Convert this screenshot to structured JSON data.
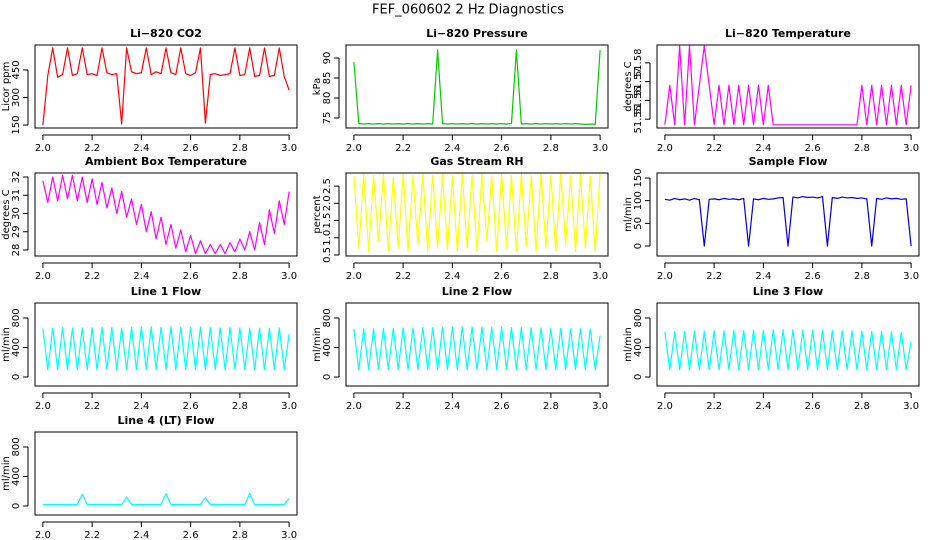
{
  "title": "FEF_060602  2 Hz Diagnostics",
  "chart_data": [
    {
      "type": "line",
      "title": "Li−820 CO2",
      "ylabel": "Licor ppm",
      "color": "#ff0000",
      "x": [
        2,
        2.02,
        2.04,
        2.06,
        2.08,
        2.1,
        2.12,
        2.14,
        2.16,
        2.18,
        2.2,
        2.22,
        2.24,
        2.26,
        2.28,
        2.3,
        2.32,
        2.34,
        2.36,
        2.38,
        2.4,
        2.42,
        2.44,
        2.46,
        2.48,
        2.5,
        2.52,
        2.54,
        2.56,
        2.58,
        2.6,
        2.62,
        2.64,
        2.66,
        2.68,
        2.7,
        2.72,
        2.74,
        2.76,
        2.78,
        2.8,
        2.82,
        2.84,
        2.86,
        2.88,
        2.9,
        2.92,
        2.94,
        2.96,
        2.98,
        3
      ],
      "values": [
        150,
        420,
        570,
        410,
        425,
        570,
        420,
        430,
        570,
        425,
        430,
        420,
        570,
        435,
        425,
        430,
        155,
        570,
        440,
        430,
        435,
        570,
        425,
        440,
        430,
        570,
        435,
        425,
        570,
        430,
        420,
        435,
        570,
        160,
        425,
        430,
        420,
        425,
        430,
        570,
        420,
        425,
        570,
        415,
        420,
        570,
        415,
        420,
        570,
        415,
        340
      ],
      "xlim": [
        1.968,
        3.032
      ],
      "xticks": [
        {
          "value": 2,
          "label": "2.0"
        },
        2.2,
        2.4,
        2.6,
        2.8,
        {
          "value": 3,
          "label": "3.0"
        }
      ],
      "ylim": [
        134,
        586
      ],
      "yticks": [
        150,
        300,
        450
      ]
    },
    {
      "type": "line",
      "title": "Li−820 Pressure",
      "ylabel": "kPa",
      "color": "#00cc00",
      "x": [
        2,
        2.02,
        2.04,
        2.06,
        2.08,
        2.1,
        2.12,
        2.14,
        2.16,
        2.18,
        2.2,
        2.22,
        2.24,
        2.26,
        2.28,
        2.3,
        2.32,
        2.34,
        2.36,
        2.38,
        2.4,
        2.42,
        2.44,
        2.46,
        2.48,
        2.5,
        2.52,
        2.54,
        2.56,
        2.58,
        2.6,
        2.62,
        2.64,
        2.66,
        2.68,
        2.7,
        2.72,
        2.74,
        2.76,
        2.78,
        2.8,
        2.82,
        2.84,
        2.86,
        2.88,
        2.9,
        2.92,
        2.94,
        2.96,
        2.98,
        3
      ],
      "values": [
        89,
        73.6,
        73.5,
        73.6,
        73.5,
        73.6,
        73.5,
        73.6,
        73.5,
        73.6,
        73.5,
        73.6,
        73.5,
        73.6,
        73.5,
        73.6,
        73.5,
        92,
        73.6,
        73.5,
        73.6,
        73.5,
        73.6,
        73.5,
        73.6,
        73.5,
        73.6,
        73.5,
        73.6,
        73.5,
        73.6,
        73.5,
        73.6,
        92,
        73.5,
        73.6,
        73.5,
        73.6,
        73.5,
        73.6,
        73.5,
        73.6,
        73.5,
        73.6,
        73.5,
        73.6,
        73.5,
        73.4,
        73.5,
        73.4,
        92
      ],
      "xlim": [
        1.968,
        3.032
      ],
      "xticks": [
        {
          "value": 2,
          "label": "2.0"
        },
        2.2,
        2.4,
        2.6,
        2.8,
        {
          "value": 3,
          "label": "3.0"
        }
      ],
      "ylim": [
        72.5,
        93.25
      ],
      "yticks": [
        75,
        80,
        85,
        90
      ]
    },
    {
      "type": "line",
      "title": "Li−820 Temperature",
      "ylabel": "degrees C",
      "color": "#ff00ff",
      "x": [
        2,
        2.02,
        2.04,
        2.06,
        2.08,
        2.1,
        2.12,
        2.14,
        2.16,
        2.18,
        2.2,
        2.22,
        2.24,
        2.26,
        2.28,
        2.3,
        2.32,
        2.34,
        2.36,
        2.38,
        2.4,
        2.42,
        2.44,
        2.46,
        2.48,
        2.5,
        2.52,
        2.54,
        2.56,
        2.58,
        2.6,
        2.62,
        2.64,
        2.66,
        2.68,
        2.7,
        2.72,
        2.74,
        2.76,
        2.78,
        2.8,
        2.82,
        2.84,
        2.86,
        2.88,
        2.9,
        2.92,
        2.94,
        2.96,
        2.98,
        3
      ],
      "values": [
        51.547,
        51.568,
        51.547,
        51.589,
        51.547,
        51.589,
        51.547,
        51.568,
        51.589,
        51.568,
        51.547,
        51.568,
        51.547,
        51.568,
        51.547,
        51.568,
        51.547,
        51.568,
        51.547,
        51.568,
        51.547,
        51.568,
        51.547,
        51.547,
        51.547,
        51.547,
        51.547,
        51.547,
        51.547,
        51.547,
        51.547,
        51.547,
        51.547,
        51.547,
        51.547,
        51.547,
        51.547,
        51.547,
        51.547,
        51.547,
        51.568,
        51.547,
        51.568,
        51.547,
        51.568,
        51.547,
        51.568,
        51.547,
        51.568,
        51.547,
        51.568
      ],
      "xlim": [
        1.968,
        3.032
      ],
      "xticks": [
        {
          "value": 2,
          "label": "2.0"
        },
        2.2,
        2.4,
        2.6,
        2.8,
        {
          "value": 3,
          "label": "3.0"
        }
      ],
      "ylim": [
        51.5453,
        51.5895
      ],
      "yticks": [
        51.55,
        51.56,
        51.57,
        51.58
      ]
    },
    {
      "type": "line",
      "title": "Ambient Box Temperature",
      "ylabel": "degrees C",
      "color": "#ff00ff",
      "x": [
        2,
        2.02,
        2.04,
        2.06,
        2.08,
        2.1,
        2.12,
        2.14,
        2.16,
        2.18,
        2.2,
        2.22,
        2.24,
        2.26,
        2.28,
        2.3,
        2.32,
        2.34,
        2.36,
        2.38,
        2.4,
        2.42,
        2.44,
        2.46,
        2.48,
        2.5,
        2.52,
        2.54,
        2.56,
        2.58,
        2.6,
        2.62,
        2.64,
        2.66,
        2.68,
        2.7,
        2.72,
        2.74,
        2.76,
        2.78,
        2.8,
        2.82,
        2.84,
        2.86,
        2.88,
        2.9,
        2.92,
        2.94,
        2.96,
        2.98,
        3
      ],
      "values": [
        31.8,
        30.6,
        32.0,
        30.7,
        32.1,
        30.8,
        32.1,
        30.7,
        32.0,
        30.6,
        31.9,
        30.5,
        31.7,
        30.3,
        31.4,
        30.0,
        31.2,
        29.8,
        30.8,
        29.4,
        30.5,
        29.0,
        30.1,
        28.6,
        29.8,
        28.3,
        29.4,
        28.1,
        29.1,
        27.9,
        28.8,
        27.8,
        28.5,
        27.8,
        28.3,
        27.8,
        28.3,
        27.8,
        28.4,
        27.9,
        28.6,
        28.0,
        29.0,
        28.0,
        29.5,
        28.3,
        30.2,
        28.9,
        30.7,
        29.4,
        31.2
      ],
      "xlim": [
        1.968,
        3.032
      ],
      "xticks": [
        {
          "value": 2,
          "label": "2.0"
        },
        2.2,
        2.4,
        2.6,
        2.8,
        {
          "value": 3,
          "label": "3.0"
        }
      ],
      "ylim": [
        27.67,
        32.22
      ],
      "yticks": [
        28,
        29,
        30,
        31,
        32
      ]
    },
    {
      "type": "line",
      "title": "Gas Stream RH",
      "ylabel": "percent",
      "color": "#ffff00",
      "x": [
        2,
        2.02,
        2.04,
        2.06,
        2.08,
        2.1,
        2.12,
        2.14,
        2.16,
        2.18,
        2.2,
        2.22,
        2.24,
        2.26,
        2.28,
        2.3,
        2.32,
        2.34,
        2.36,
        2.38,
        2.4,
        2.42,
        2.44,
        2.46,
        2.48,
        2.5,
        2.52,
        2.54,
        2.56,
        2.58,
        2.6,
        2.62,
        2.64,
        2.66,
        2.68,
        2.7,
        2.72,
        2.74,
        2.76,
        2.78,
        2.8,
        2.82,
        2.84,
        2.86,
        2.88,
        2.9,
        2.92,
        2.94,
        2.96,
        2.98,
        3
      ],
      "values": [
        2.8,
        0.7,
        2.85,
        0.6,
        2.8,
        0.9,
        2.85,
        0.6,
        2.75,
        0.7,
        2.85,
        0.6,
        2.8,
        0.8,
        2.85,
        0.6,
        2.8,
        0.7,
        2.85,
        0.65,
        2.8,
        0.6,
        2.85,
        0.7,
        2.8,
        0.6,
        2.85,
        0.9,
        2.8,
        0.6,
        2.85,
        0.7,
        2.8,
        0.6,
        2.85,
        0.75,
        2.8,
        0.6,
        2.85,
        0.7,
        2.8,
        0.6,
        2.85,
        0.8,
        2.8,
        0.6,
        2.85,
        0.7,
        2.8,
        0.6,
        2.85
      ],
      "xlim": [
        1.968,
        3.032
      ],
      "xticks": [
        {
          "value": 2,
          "label": "2.0"
        },
        2.2,
        2.4,
        2.6,
        2.8,
        {
          "value": 3,
          "label": "3.0"
        }
      ],
      "ylim": [
        0.47,
        2.88
      ],
      "yticks": [
        0.5,
        {
          "value": 1,
          "label": "1.0"
        },
        1.5,
        {
          "value": 2,
          "label": "2.0"
        },
        2.5
      ]
    },
    {
      "type": "line",
      "title": "Sample Flow",
      "ylabel": "ml/min",
      "color": "#0000dd",
      "x": [
        2,
        2.02,
        2.04,
        2.06,
        2.08,
        2.1,
        2.12,
        2.14,
        2.16,
        2.18,
        2.2,
        2.22,
        2.24,
        2.26,
        2.28,
        2.3,
        2.32,
        2.34,
        2.36,
        2.38,
        2.4,
        2.42,
        2.44,
        2.46,
        2.48,
        2.5,
        2.52,
        2.54,
        2.56,
        2.58,
        2.6,
        2.62,
        2.64,
        2.66,
        2.68,
        2.7,
        2.72,
        2.74,
        2.76,
        2.78,
        2.8,
        2.82,
        2.84,
        2.86,
        2.88,
        2.9,
        2.92,
        2.94,
        2.96,
        2.98,
        3
      ],
      "values": [
        103,
        101,
        105,
        102,
        104,
        101,
        105,
        102,
        0,
        103,
        104,
        102,
        105,
        103,
        104,
        102,
        105,
        0,
        104,
        102,
        105,
        103,
        104,
        106,
        107,
        0,
        108,
        106,
        109,
        107,
        108,
        106,
        109,
        0,
        107,
        105,
        108,
        106,
        107,
        105,
        106,
        104,
        0,
        105,
        103,
        106,
        104,
        105,
        103,
        104,
        0
      ],
      "xlim": [
        1.968,
        3.032
      ],
      "xticks": [
        {
          "value": 2,
          "label": "2.0"
        },
        2.2,
        2.4,
        2.6,
        2.8,
        {
          "value": 3,
          "label": "3.0"
        }
      ],
      "ylim": [
        -22,
        161
      ],
      "yticks": [
        0,
        50,
        100,
        150
      ]
    },
    {
      "type": "line",
      "title": "Line 1 Flow",
      "ylabel": "ml/min",
      "color": "#00ffff",
      "x": [
        2,
        2.02,
        2.04,
        2.06,
        2.08,
        2.1,
        2.12,
        2.14,
        2.16,
        2.18,
        2.2,
        2.22,
        2.24,
        2.26,
        2.28,
        2.3,
        2.32,
        2.34,
        2.36,
        2.38,
        2.4,
        2.42,
        2.44,
        2.46,
        2.48,
        2.5,
        2.52,
        2.54,
        2.56,
        2.58,
        2.6,
        2.62,
        2.64,
        2.66,
        2.68,
        2.7,
        2.72,
        2.74,
        2.76,
        2.78,
        2.8,
        2.82,
        2.84,
        2.86,
        2.88,
        2.9,
        2.92,
        2.94,
        2.96,
        2.98,
        3
      ],
      "values": [
        660,
        100,
        665,
        100,
        670,
        100,
        660,
        100,
        665,
        100,
        670,
        100,
        675,
        100,
        670,
        100,
        665,
        100,
        670,
        100,
        675,
        100,
        680,
        100,
        675,
        100,
        680,
        100,
        675,
        100,
        670,
        100,
        675,
        100,
        670,
        100,
        665,
        100,
        670,
        100,
        665,
        100,
        660,
        100,
        665,
        100,
        660,
        100,
        665,
        100,
        580
      ],
      "xlim": [
        1.968,
        3.032
      ],
      "xticks": [
        {
          "value": 2,
          "label": "2.0"
        },
        2.2,
        2.4,
        2.6,
        2.8,
        {
          "value": 3,
          "label": "3.0"
        }
      ],
      "ylim": [
        -122,
        1003
      ],
      "yticks": [
        0,
        400,
        800
      ]
    },
    {
      "type": "line",
      "title": "Line 2 Flow",
      "ylabel": "ml/min",
      "color": "#00ffff",
      "x": [
        2,
        2.02,
        2.04,
        2.06,
        2.08,
        2.1,
        2.12,
        2.14,
        2.16,
        2.18,
        2.2,
        2.22,
        2.24,
        2.26,
        2.28,
        2.3,
        2.32,
        2.34,
        2.36,
        2.38,
        2.4,
        2.42,
        2.44,
        2.46,
        2.48,
        2.5,
        2.52,
        2.54,
        2.56,
        2.58,
        2.6,
        2.62,
        2.64,
        2.66,
        2.68,
        2.7,
        2.72,
        2.74,
        2.76,
        2.78,
        2.8,
        2.82,
        2.84,
        2.86,
        2.88,
        2.9,
        2.92,
        2.94,
        2.96,
        2.98,
        3
      ],
      "values": [
        650,
        100,
        655,
        100,
        655,
        100,
        660,
        100,
        660,
        100,
        665,
        100,
        665,
        100,
        670,
        100,
        670,
        100,
        675,
        100,
        675,
        100,
        680,
        100,
        680,
        100,
        680,
        100,
        675,
        100,
        675,
        100,
        670,
        100,
        670,
        100,
        665,
        100,
        665,
        100,
        660,
        100,
        660,
        100,
        655,
        100,
        655,
        100,
        650,
        100,
        560
      ],
      "xlim": [
        1.968,
        3.032
      ],
      "xticks": [
        {
          "value": 2,
          "label": "2.0"
        },
        2.2,
        2.4,
        2.6,
        2.8,
        {
          "value": 3,
          "label": "3.0"
        }
      ],
      "ylim": [
        -122,
        1003
      ],
      "yticks": [
        0,
        400,
        800
      ]
    },
    {
      "type": "line",
      "title": "Line 3 Flow",
      "ylabel": "ml/min",
      "color": "#00ffff",
      "x": [
        2,
        2.02,
        2.04,
        2.06,
        2.08,
        2.1,
        2.12,
        2.14,
        2.16,
        2.18,
        2.2,
        2.22,
        2.24,
        2.26,
        2.28,
        2.3,
        2.32,
        2.34,
        2.36,
        2.38,
        2.4,
        2.42,
        2.44,
        2.46,
        2.48,
        2.5,
        2.52,
        2.54,
        2.56,
        2.58,
        2.6,
        2.62,
        2.64,
        2.66,
        2.68,
        2.7,
        2.72,
        2.74,
        2.76,
        2.78,
        2.8,
        2.82,
        2.84,
        2.86,
        2.88,
        2.9,
        2.92,
        2.94,
        2.96,
        2.98,
        3
      ],
      "values": [
        610,
        100,
        615,
        100,
        615,
        100,
        620,
        100,
        620,
        100,
        625,
        100,
        625,
        100,
        630,
        100,
        630,
        100,
        635,
        100,
        635,
        100,
        640,
        100,
        640,
        100,
        640,
        100,
        635,
        100,
        635,
        100,
        630,
        100,
        630,
        100,
        625,
        100,
        625,
        100,
        620,
        100,
        615,
        100,
        615,
        100,
        610,
        100,
        605,
        100,
        480
      ],
      "xlim": [
        1.968,
        3.032
      ],
      "xticks": [
        {
          "value": 2,
          "label": "2.0"
        },
        2.2,
        2.4,
        2.6,
        2.8,
        {
          "value": 3,
          "label": "3.0"
        }
      ],
      "ylim": [
        -122,
        1003
      ],
      "yticks": [
        0,
        400,
        800
      ]
    },
    {
      "type": "line",
      "title": "Line 4 (LT) Flow",
      "ylabel": "ml/min",
      "color": "#00ffff",
      "x": [
        2,
        2.02,
        2.04,
        2.06,
        2.08,
        2.1,
        2.12,
        2.14,
        2.16,
        2.18,
        2.2,
        2.22,
        2.24,
        2.26,
        2.28,
        2.3,
        2.32,
        2.34,
        2.36,
        2.38,
        2.4,
        2.42,
        2.44,
        2.46,
        2.48,
        2.5,
        2.52,
        2.54,
        2.56,
        2.58,
        2.6,
        2.62,
        2.64,
        2.66,
        2.68,
        2.7,
        2.72,
        2.74,
        2.76,
        2.78,
        2.8,
        2.82,
        2.84,
        2.86,
        2.88,
        2.9,
        2.92,
        2.94,
        2.96,
        2.98,
        3
      ],
      "values": [
        20,
        20,
        20,
        20,
        20,
        20,
        20,
        20,
        160,
        20,
        20,
        20,
        20,
        20,
        20,
        20,
        20,
        120,
        20,
        20,
        20,
        20,
        20,
        20,
        20,
        170,
        20,
        20,
        20,
        20,
        20,
        20,
        20,
        110,
        20,
        20,
        20,
        20,
        20,
        20,
        20,
        20,
        170,
        20,
        20,
        20,
        20,
        20,
        20,
        20,
        100
      ],
      "xlim": [
        1.968,
        3.032
      ],
      "xticks": [
        {
          "value": 2,
          "label": "2.0"
        },
        2.2,
        2.4,
        2.6,
        2.8,
        {
          "value": 3,
          "label": "3.0"
        }
      ],
      "ylim": [
        -122,
        1003
      ],
      "yticks": [
        0,
        400,
        800
      ]
    }
  ]
}
